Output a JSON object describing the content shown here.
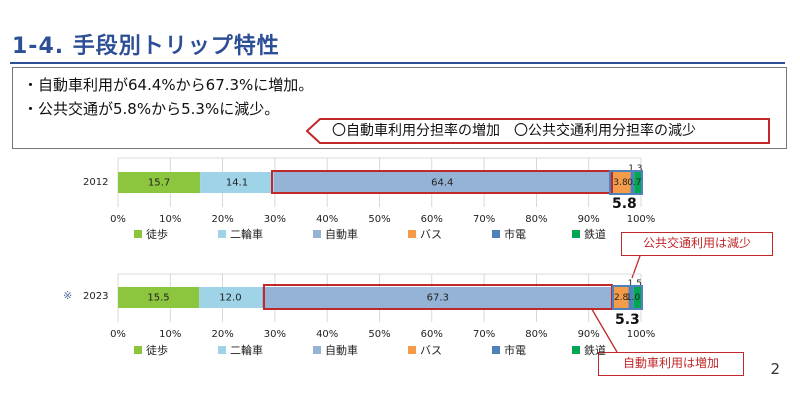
{
  "header": {
    "title": "1-4.  手段別トリップ特性"
  },
  "summary": {
    "line1": "・自動車利用が64.4%から67.3%に増加。",
    "line2": "・公共交通が5.8%から5.3%に減少。",
    "callout": "〇自動車利用分担率の増加　〇公共交通利用分担率の減少"
  },
  "colors": {
    "walk": "#8cc63f",
    "motorbike": "#9fd3e8",
    "car": "#95b3d7",
    "bus": "#f59c4a",
    "tram": "#4f81bd",
    "rail": "#00a651",
    "emphasis": "#c0282a",
    "title": "#2c4f96"
  },
  "chart_data": [
    {
      "type": "bar",
      "orientation": "horizontal",
      "stacked": true,
      "categories": [
        "2012"
      ],
      "series": [
        {
          "name": "徒歩",
          "values": [
            15.7
          ],
          "label": "15.7"
        },
        {
          "name": "二輪車",
          "values": [
            14.1
          ],
          "label": "14.1"
        },
        {
          "name": "自動車",
          "values": [
            64.4
          ],
          "label": "64.4"
        },
        {
          "name": "バス",
          "values": [
            3.8
          ],
          "label": "3.8"
        },
        {
          "name": "市電",
          "values": [
            0.7
          ],
          "label": "0.7"
        },
        {
          "name": "鉄道",
          "values": [
            1.3
          ],
          "label": "1.3"
        }
      ],
      "xlim": [
        0,
        100
      ],
      "xticks": [
        "0%",
        "10%",
        "20%",
        "30%",
        "40%",
        "50%",
        "60%",
        "70%",
        "80%",
        "90%",
        "100%"
      ],
      "annotations": {
        "public_transport_total": "5.8"
      }
    },
    {
      "type": "bar",
      "orientation": "horizontal",
      "stacked": true,
      "categories": [
        "2023"
      ],
      "series": [
        {
          "name": "徒歩",
          "values": [
            15.5
          ],
          "label": "15.5"
        },
        {
          "name": "二輪車",
          "values": [
            12.0
          ],
          "label": "12.0"
        },
        {
          "name": "自動車",
          "values": [
            67.3
          ],
          "label": "67.3"
        },
        {
          "name": "バス",
          "values": [
            2.8
          ],
          "label": "2.8"
        },
        {
          "name": "市電",
          "values": [
            1.0
          ],
          "label": "1.0"
        },
        {
          "name": "鉄道",
          "values": [
            1.5
          ],
          "label": "1.5"
        }
      ],
      "xlim": [
        0,
        100
      ],
      "xticks": [
        "0%",
        "10%",
        "20%",
        "30%",
        "40%",
        "50%",
        "60%",
        "70%",
        "80%",
        "90%",
        "100%"
      ],
      "annotations": {
        "asterisk": "※",
        "public_transport_total": "5.3",
        "note_public": "公共交通利用は減少",
        "note_car": "自動車利用は増加"
      }
    }
  ],
  "page_number": "2"
}
